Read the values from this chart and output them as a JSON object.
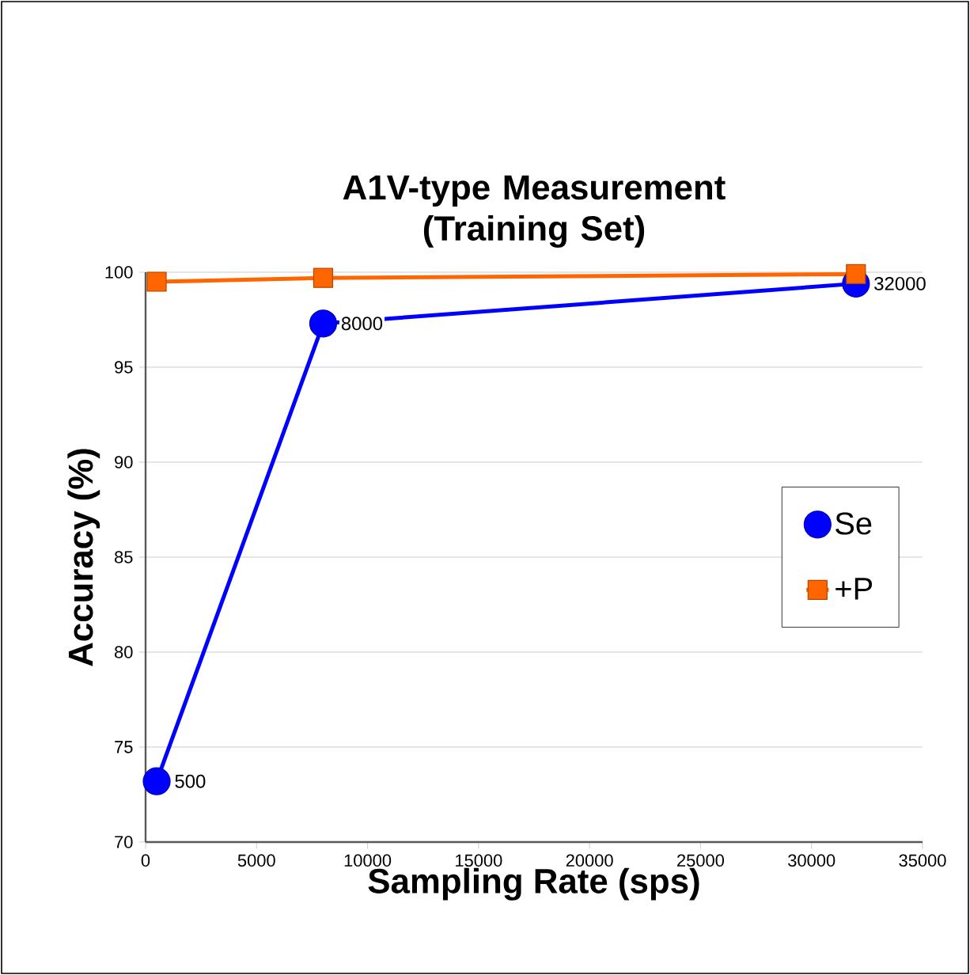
{
  "chart_data": {
    "type": "line",
    "title": "A1V-type Measurement (Training Set)",
    "xlabel": "Sampling Rate (sps)",
    "ylabel": "Accuracy (%)",
    "xlim": [
      0,
      35000
    ],
    "xticks": [
      0,
      5000,
      10000,
      15000,
      20000,
      25000,
      30000,
      35000
    ],
    "ylim": [
      70,
      100
    ],
    "yticks": [
      70,
      75,
      80,
      85,
      90,
      95,
      100
    ],
    "grid": "y",
    "legend": "right",
    "series": [
      {
        "name": "Se",
        "color": "#0000ff",
        "marker": "circle",
        "x": [
          500,
          8000,
          32000
        ],
        "values": [
          73.2,
          97.3,
          99.4
        ]
      },
      {
        "name": "+P",
        "color": "#ff6600",
        "marker": "square",
        "x": [
          500,
          8000,
          32000
        ],
        "values": [
          99.5,
          99.7,
          99.9
        ]
      }
    ],
    "annotations": [
      {
        "text": "500",
        "x": 500,
        "y": 73.2
      },
      {
        "text": "8000",
        "x": 8000,
        "y": 97.3
      },
      {
        "text": "32000",
        "x": 32000,
        "y": 99.4
      }
    ]
  }
}
